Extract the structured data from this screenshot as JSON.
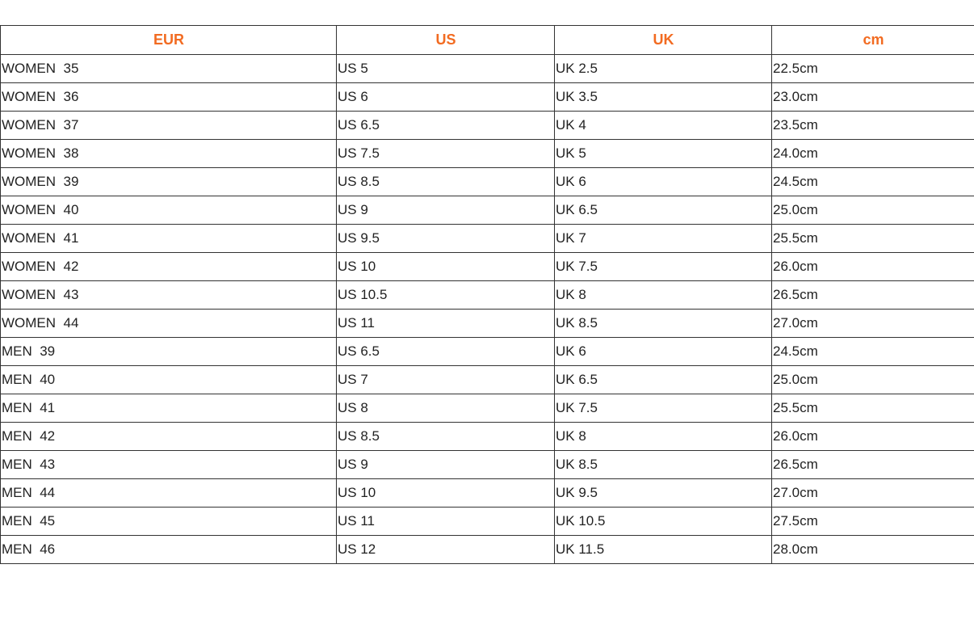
{
  "table": {
    "header_color": "#f26b21",
    "headers": [
      "EUR",
      "US",
      "UK",
      "cm"
    ],
    "rows": [
      [
        "WOMEN  35",
        "US 5",
        "UK 2.5",
        "22.5cm"
      ],
      [
        "WOMEN  36",
        "US 6",
        "UK 3.5",
        "23.0cm"
      ],
      [
        "WOMEN  37",
        "US 6.5",
        "UK 4",
        "23.5cm"
      ],
      [
        "WOMEN  38",
        "US 7.5",
        "UK 5",
        "24.0cm"
      ],
      [
        "WOMEN  39",
        "US 8.5",
        "UK 6",
        "24.5cm"
      ],
      [
        "WOMEN  40",
        "US 9",
        "UK 6.5",
        "25.0cm"
      ],
      [
        "WOMEN  41",
        "US 9.5",
        "UK 7",
        "25.5cm"
      ],
      [
        "WOMEN  42",
        "US 10",
        "UK 7.5",
        "26.0cm"
      ],
      [
        "WOMEN  43",
        "US 10.5",
        "UK 8",
        "26.5cm"
      ],
      [
        "WOMEN  44",
        "US 11",
        "UK 8.5",
        "27.0cm"
      ],
      [
        "MEN  39",
        "US 6.5",
        "UK 6",
        "24.5cm"
      ],
      [
        "MEN  40",
        "US 7",
        "UK 6.5",
        "25.0cm"
      ],
      [
        "MEN  41",
        "US 8",
        "UK 7.5",
        "25.5cm"
      ],
      [
        "MEN  42",
        "US 8.5",
        "UK 8",
        "26.0cm"
      ],
      [
        "MEN  43",
        "US 9",
        "UK 8.5",
        "26.5cm"
      ],
      [
        "MEN  44",
        "US 10",
        "UK 9.5",
        "27.0cm"
      ],
      [
        "MEN  45",
        "US 11",
        "UK 10.5",
        "27.5cm"
      ],
      [
        "MEN  46",
        "US 12",
        "UK 11.5",
        "28.0cm"
      ]
    ]
  }
}
